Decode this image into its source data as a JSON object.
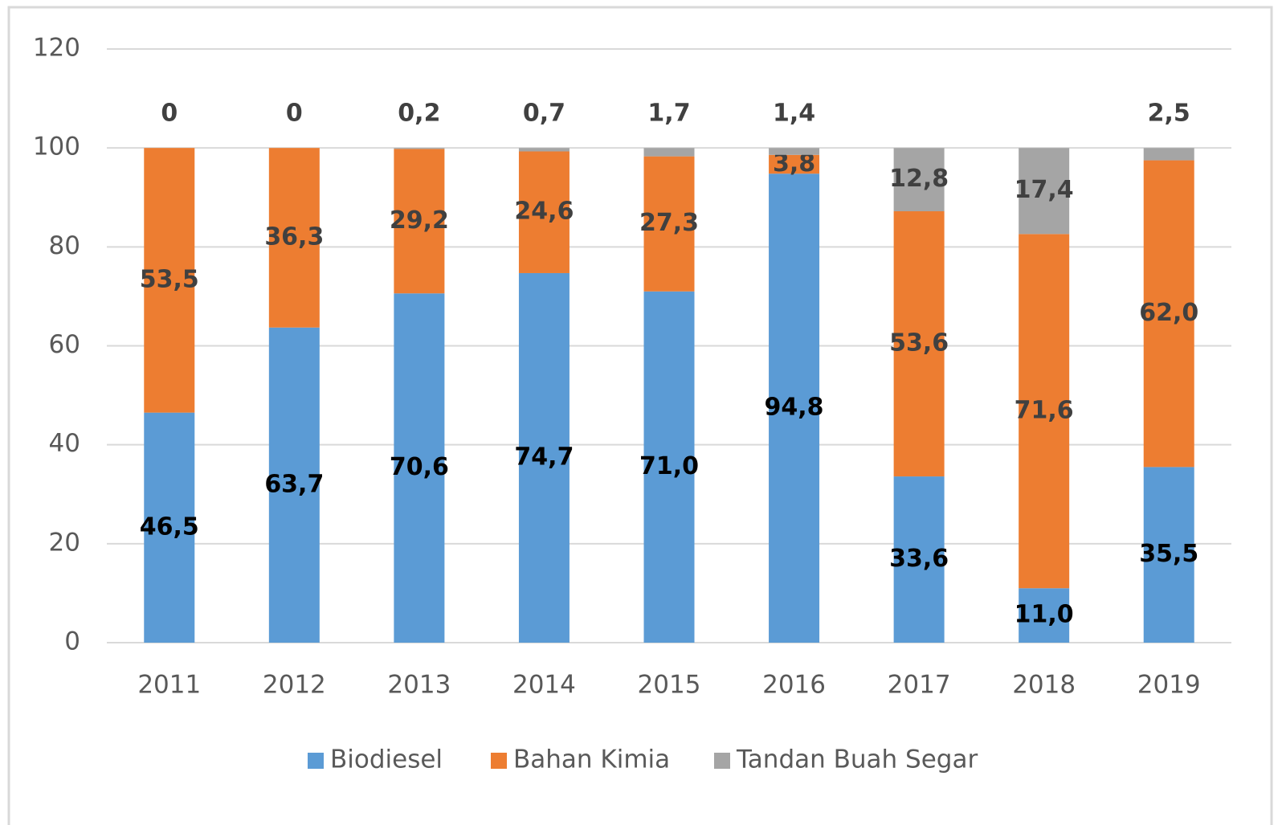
{
  "chart_data": {
    "type": "stacked-bar",
    "categories": [
      "2011",
      "2012",
      "2013",
      "2014",
      "2015",
      "2016",
      "2017",
      "2018",
      "2019"
    ],
    "series": [
      {
        "name": "Biodiesel",
        "color": "#5b9bd5",
        "values": [
          46.5,
          63.7,
          70.6,
          74.7,
          71.0,
          94.8,
          33.6,
          11.0,
          35.5
        ],
        "value_labels": [
          "46,5",
          "63,7",
          "70,6",
          "74,7",
          "71,0",
          "94,8",
          "33,6",
          "11,0",
          "35,5"
        ]
      },
      {
        "name": "Bahan Kimia",
        "color": "#ed7d31",
        "values": [
          53.5,
          36.3,
          29.2,
          24.6,
          27.3,
          3.8,
          53.6,
          71.6,
          62.0
        ],
        "value_labels": [
          "53,5",
          "36,3",
          "29,2",
          "24,6",
          "27,3",
          "3,8",
          "53,6",
          "71,6",
          "62,0"
        ]
      },
      {
        "name": "Tandan Buah Segar",
        "color": "#a5a5a5",
        "values": [
          0,
          0,
          0.2,
          0.7,
          1.7,
          1.4,
          12.8,
          17.4,
          2.5
        ],
        "value_labels": [
          "0",
          "0",
          "0,2",
          "0,7",
          "1,7",
          "1,4",
          "12,8",
          "17,4",
          "2,5"
        ]
      }
    ],
    "ylim": [
      0,
      120
    ],
    "yticks": [
      0,
      20,
      40,
      60,
      80,
      100,
      120
    ],
    "grid": true,
    "legend": "bottom"
  }
}
